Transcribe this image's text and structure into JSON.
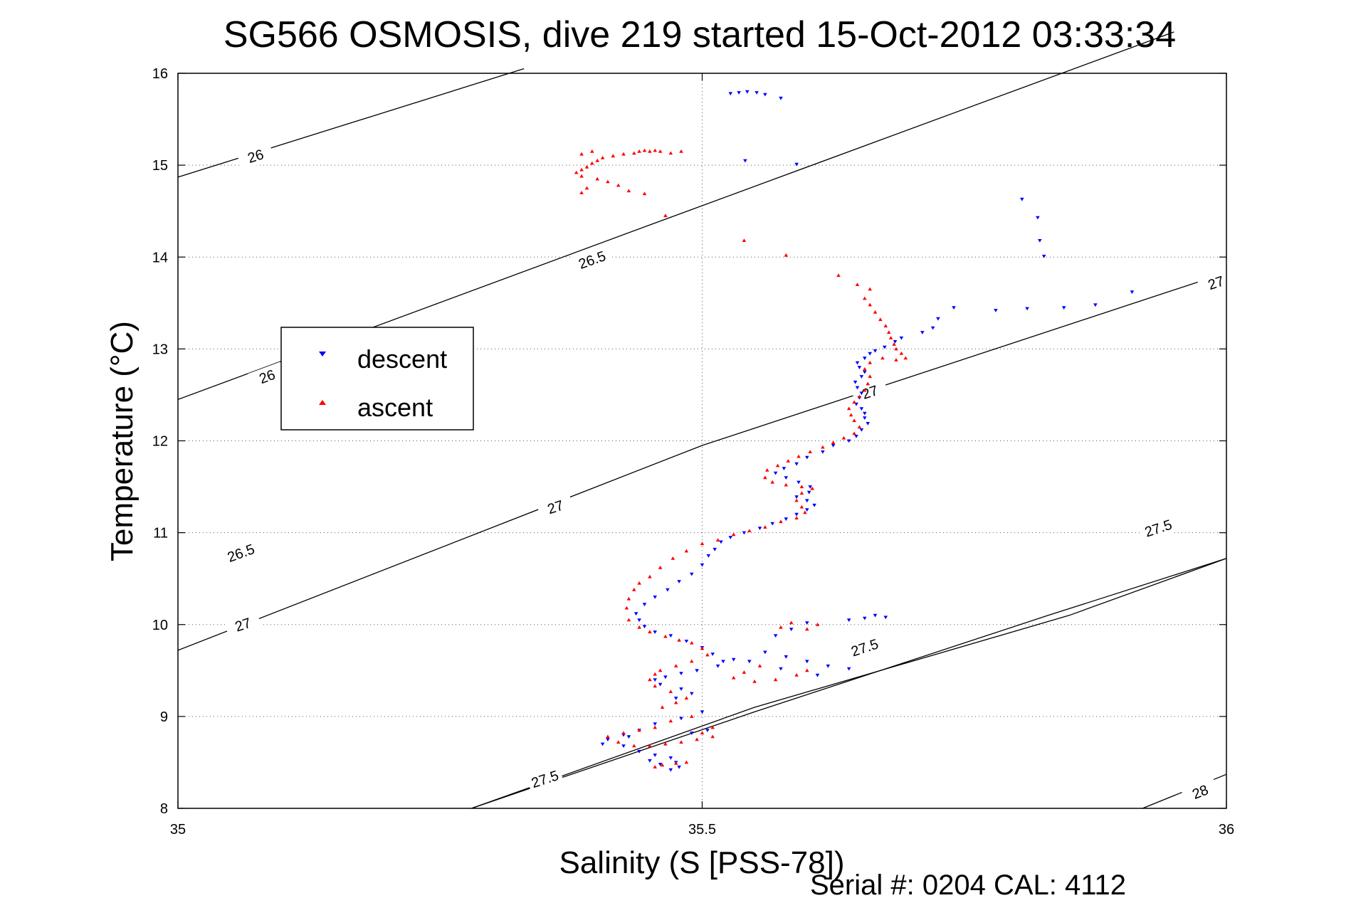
{
  "chart_data": {
    "type": "scatter",
    "title": "SG566 OSMOSIS, dive 219 started 15-Oct-2012 03:33:34",
    "xlabel": "Salinity (S [PSS-78])",
    "ylabel": "Temperature (°C)",
    "footer": "Serial #: 0204  CAL: 4112",
    "xlim": [
      35,
      36
    ],
    "ylim": [
      8,
      16
    ],
    "xticks": [
      "35",
      "35.5",
      "36"
    ],
    "yticks": [
      "8",
      "9",
      "10",
      "11",
      "12",
      "13",
      "14",
      "15",
      "16"
    ],
    "grid": "dotted",
    "legend": {
      "placement": "left",
      "entries": [
        {
          "label": "descent",
          "color": "#0000ff",
          "marker": "triangle-down"
        },
        {
          "label": "ascent",
          "color": "#ff0000",
          "marker": "triangle-up"
        }
      ]
    },
    "density_contours": [
      {
        "sigma": "26",
        "points": [
          [
            35.0,
            12.45
          ],
          [
            35.45,
            14.35
          ],
          [
            35.95,
            16.45
          ]
        ],
        "labels": [
          [
            35.085,
            12.7
          ]
        ]
      },
      {
        "sigma": "26",
        "points": [
          [
            35.0,
            14.87
          ],
          [
            35.33,
            16.05
          ]
        ],
        "labels": [
          [
            35.074,
            15.1
          ]
        ]
      },
      {
        "sigma": "26.5",
        "points": [
          [
            35.0,
            9.72
          ],
          [
            35.5,
            11.95
          ],
          [
            36.0,
            13.83
          ]
        ],
        "labels": [
          [
            35.395,
            13.97
          ],
          [
            35.06,
            10.78
          ]
        ]
      },
      {
        "sigma": "27",
        "points": [
          [
            35.28,
            8.0
          ],
          [
            35.55,
            9.05
          ],
          [
            35.83,
            10.1
          ],
          [
            36.0,
            10.72
          ]
        ],
        "labels": [
          [
            35.062,
            10.0
          ],
          [
            35.36,
            11.28
          ],
          [
            35.66,
            12.53
          ],
          [
            35.99,
            13.72
          ]
        ]
      },
      {
        "sigma": "27.5",
        "points": [
          [
            35.28,
            8.0
          ],
          [
            35.55,
            9.1
          ],
          [
            35.85,
            10.1
          ],
          [
            36.0,
            10.72
          ]
        ],
        "labels": [
          [
            35.35,
            8.32
          ],
          [
            35.655,
            9.75
          ],
          [
            35.935,
            11.05
          ]
        ]
      },
      {
        "sigma": "28",
        "points": [
          [
            35.92,
            8.0
          ],
          [
            36.0,
            8.37
          ]
        ],
        "labels": [
          [
            35.975,
            8.18
          ]
        ]
      }
    ],
    "series": [
      {
        "name": "descent",
        "color": "#0000ff",
        "points": [
          [
            35.527,
            15.78
          ],
          [
            35.535,
            15.79
          ],
          [
            35.543,
            15.8
          ],
          [
            35.552,
            15.79
          ],
          [
            35.56,
            15.77
          ],
          [
            35.575,
            15.73
          ],
          [
            35.541,
            15.05
          ],
          [
            35.59,
            15.01
          ],
          [
            35.805,
            14.63
          ],
          [
            35.82,
            14.43
          ],
          [
            35.822,
            14.18
          ],
          [
            35.826,
            14.01
          ],
          [
            35.91,
            13.62
          ],
          [
            35.875,
            13.48
          ],
          [
            35.845,
            13.45
          ],
          [
            35.81,
            13.44
          ],
          [
            35.78,
            13.42
          ],
          [
            35.74,
            13.45
          ],
          [
            35.725,
            13.33
          ],
          [
            35.72,
            13.23
          ],
          [
            35.71,
            13.18
          ],
          [
            35.69,
            13.12
          ],
          [
            35.684,
            13.08
          ],
          [
            35.674,
            13.02
          ],
          [
            35.665,
            12.98
          ],
          [
            35.66,
            12.95
          ],
          [
            35.655,
            12.9
          ],
          [
            35.648,
            12.85
          ],
          [
            35.65,
            12.8
          ],
          [
            35.655,
            12.75
          ],
          [
            35.652,
            12.7
          ],
          [
            35.646,
            12.64
          ],
          [
            35.648,
            12.58
          ],
          [
            35.652,
            12.52
          ],
          [
            35.65,
            12.47
          ],
          [
            35.647,
            12.4
          ],
          [
            35.652,
            12.35
          ],
          [
            35.655,
            12.3
          ],
          [
            35.655,
            12.25
          ],
          [
            35.658,
            12.19
          ],
          [
            35.652,
            12.12
          ],
          [
            35.647,
            12.05
          ],
          [
            35.64,
            12.0
          ],
          [
            35.625,
            11.95
          ],
          [
            35.615,
            11.88
          ],
          [
            35.6,
            11.82
          ],
          [
            35.59,
            11.75
          ],
          [
            35.578,
            11.7
          ],
          [
            35.57,
            11.65
          ],
          [
            35.58,
            11.6
          ],
          [
            35.592,
            11.55
          ],
          [
            35.603,
            11.5
          ],
          [
            35.602,
            11.44
          ],
          [
            35.59,
            11.39
          ],
          [
            35.6,
            11.35
          ],
          [
            35.607,
            11.3
          ],
          [
            35.6,
            11.25
          ],
          [
            35.59,
            11.2
          ],
          [
            35.58,
            11.15
          ],
          [
            35.567,
            11.1
          ],
          [
            35.555,
            11.05
          ],
          [
            35.54,
            11.0
          ],
          [
            35.527,
            10.95
          ],
          [
            35.518,
            10.9
          ],
          [
            35.512,
            10.82
          ],
          [
            35.506,
            10.75
          ],
          [
            35.5,
            10.65
          ],
          [
            35.49,
            10.55
          ],
          [
            35.478,
            10.47
          ],
          [
            35.467,
            10.38
          ],
          [
            35.455,
            10.3
          ],
          [
            35.445,
            10.22
          ],
          [
            35.437,
            10.12
          ],
          [
            35.44,
            10.05
          ],
          [
            35.445,
            9.98
          ],
          [
            35.455,
            9.92
          ],
          [
            35.47,
            9.88
          ],
          [
            35.485,
            9.82
          ],
          [
            35.5,
            9.75
          ],
          [
            35.51,
            9.68
          ],
          [
            35.52,
            9.6
          ],
          [
            35.515,
            9.55
          ],
          [
            35.495,
            9.5
          ],
          [
            35.48,
            9.47
          ],
          [
            35.465,
            9.43
          ],
          [
            35.455,
            9.4
          ],
          [
            35.46,
            9.35
          ],
          [
            35.48,
            9.3
          ],
          [
            35.49,
            9.25
          ],
          [
            35.475,
            9.2
          ],
          [
            35.56,
            9.7
          ],
          [
            35.58,
            9.65
          ],
          [
            35.6,
            9.6
          ],
          [
            35.62,
            9.55
          ],
          [
            35.64,
            9.52
          ],
          [
            35.61,
            9.45
          ],
          [
            35.575,
            9.52
          ],
          [
            35.545,
            9.6
          ],
          [
            35.53,
            9.62
          ],
          [
            35.675,
            10.08
          ],
          [
            35.665,
            10.1
          ],
          [
            35.655,
            10.07
          ],
          [
            35.64,
            10.05
          ],
          [
            35.6,
            10.02
          ],
          [
            35.585,
            9.95
          ],
          [
            35.57,
            9.88
          ],
          [
            35.5,
            9.05
          ],
          [
            35.48,
            8.98
          ],
          [
            35.455,
            8.92
          ],
          [
            35.44,
            8.85
          ],
          [
            35.425,
            8.8
          ],
          [
            35.41,
            8.75
          ],
          [
            35.405,
            8.7
          ],
          [
            35.425,
            8.68
          ],
          [
            35.44,
            8.62
          ],
          [
            35.455,
            8.58
          ],
          [
            35.47,
            8.55
          ],
          [
            35.475,
            8.5
          ],
          [
            35.478,
            8.45
          ],
          [
            35.47,
            8.42
          ],
          [
            35.46,
            8.48
          ],
          [
            35.45,
            8.52
          ],
          [
            35.43,
            8.78
          ],
          [
            35.49,
            8.82
          ],
          [
            35.505,
            8.85
          ]
        ]
      },
      {
        "name": "ascent",
        "color": "#ff0000",
        "points": [
          [
            35.46,
            15.15
          ],
          [
            35.455,
            15.16
          ],
          [
            35.45,
            15.15
          ],
          [
            35.445,
            15.16
          ],
          [
            35.44,
            15.15
          ],
          [
            35.435,
            15.13
          ],
          [
            35.425,
            15.12
          ],
          [
            35.415,
            15.1
          ],
          [
            35.405,
            15.08
          ],
          [
            35.4,
            15.05
          ],
          [
            35.395,
            15.02
          ],
          [
            35.39,
            14.98
          ],
          [
            35.385,
            14.95
          ],
          [
            35.38,
            14.92
          ],
          [
            35.385,
            14.88
          ],
          [
            35.4,
            14.85
          ],
          [
            35.41,
            14.82
          ],
          [
            35.42,
            14.78
          ],
          [
            35.43,
            14.72
          ],
          [
            35.445,
            14.69
          ],
          [
            35.385,
            14.7
          ],
          [
            35.39,
            14.75
          ],
          [
            35.47,
            15.13
          ],
          [
            35.48,
            15.15
          ],
          [
            35.385,
            15.12
          ],
          [
            35.395,
            15.15
          ],
          [
            35.465,
            14.45
          ],
          [
            35.54,
            14.18
          ],
          [
            35.58,
            14.02
          ],
          [
            35.63,
            13.8
          ],
          [
            35.648,
            13.7
          ],
          [
            35.66,
            13.65
          ],
          [
            35.655,
            13.55
          ],
          [
            35.66,
            13.48
          ],
          [
            35.665,
            13.4
          ],
          [
            35.67,
            13.32
          ],
          [
            35.675,
            13.25
          ],
          [
            35.678,
            13.18
          ],
          [
            35.68,
            13.12
          ],
          [
            35.683,
            13.05
          ],
          [
            35.685,
            13.0
          ],
          [
            35.69,
            12.95
          ],
          [
            35.694,
            12.9
          ],
          [
            35.685,
            12.88
          ],
          [
            35.672,
            12.9
          ],
          [
            35.66,
            12.85
          ],
          [
            35.655,
            12.78
          ],
          [
            35.66,
            12.7
          ],
          [
            35.658,
            12.62
          ],
          [
            35.655,
            12.55
          ],
          [
            35.65,
            12.48
          ],
          [
            35.645,
            12.42
          ],
          [
            35.64,
            12.35
          ],
          [
            35.642,
            12.28
          ],
          [
            35.645,
            12.22
          ],
          [
            35.65,
            12.15
          ],
          [
            35.645,
            12.08
          ],
          [
            35.635,
            12.03
          ],
          [
            35.625,
            11.98
          ],
          [
            35.615,
            11.93
          ],
          [
            35.603,
            11.88
          ],
          [
            35.592,
            11.83
          ],
          [
            35.582,
            11.78
          ],
          [
            35.572,
            11.73
          ],
          [
            35.562,
            11.68
          ],
          [
            35.56,
            11.6
          ],
          [
            35.567,
            11.55
          ],
          [
            35.58,
            11.52
          ],
          [
            35.595,
            11.5
          ],
          [
            35.605,
            11.48
          ],
          [
            35.595,
            11.43
          ],
          [
            35.59,
            11.35
          ],
          [
            35.595,
            11.28
          ],
          [
            35.598,
            11.22
          ],
          [
            35.59,
            11.16
          ],
          [
            35.575,
            11.12
          ],
          [
            35.56,
            11.06
          ],
          [
            35.545,
            11.02
          ],
          [
            35.53,
            10.98
          ],
          [
            35.515,
            10.92
          ],
          [
            35.5,
            10.88
          ],
          [
            35.485,
            10.8
          ],
          [
            35.472,
            10.72
          ],
          [
            35.46,
            10.62
          ],
          [
            35.45,
            10.52
          ],
          [
            35.44,
            10.45
          ],
          [
            35.435,
            10.38
          ],
          [
            35.43,
            10.28
          ],
          [
            35.428,
            10.18
          ],
          [
            35.43,
            10.05
          ],
          [
            35.44,
            9.97
          ],
          [
            35.45,
            9.92
          ],
          [
            35.465,
            9.87
          ],
          [
            35.478,
            9.83
          ],
          [
            35.49,
            9.8
          ],
          [
            35.5,
            9.74
          ],
          [
            35.505,
            9.67
          ],
          [
            35.49,
            9.6
          ],
          [
            35.475,
            9.55
          ],
          [
            35.46,
            9.5
          ],
          [
            35.455,
            9.46
          ],
          [
            35.45,
            9.4
          ],
          [
            35.455,
            9.33
          ],
          [
            35.47,
            9.27
          ],
          [
            35.485,
            9.2
          ],
          [
            35.475,
            9.15
          ],
          [
            35.462,
            9.1
          ],
          [
            35.53,
            9.42
          ],
          [
            35.55,
            9.38
          ],
          [
            35.57,
            9.4
          ],
          [
            35.59,
            9.45
          ],
          [
            35.6,
            9.5
          ],
          [
            35.555,
            9.55
          ],
          [
            35.54,
            9.48
          ],
          [
            35.6,
            9.95
          ],
          [
            35.61,
            10.0
          ],
          [
            35.585,
            10.02
          ],
          [
            35.575,
            9.97
          ],
          [
            35.49,
            9.0
          ],
          [
            35.47,
            8.95
          ],
          [
            35.455,
            8.88
          ],
          [
            35.44,
            8.85
          ],
          [
            35.425,
            8.82
          ],
          [
            35.41,
            8.78
          ],
          [
            35.42,
            8.72
          ],
          [
            35.435,
            8.68
          ],
          [
            35.45,
            8.68
          ],
          [
            35.465,
            8.7
          ],
          [
            35.48,
            8.72
          ],
          [
            35.495,
            8.75
          ],
          [
            35.51,
            8.78
          ],
          [
            35.5,
            8.82
          ],
          [
            35.51,
            8.88
          ],
          [
            35.455,
            8.45
          ],
          [
            35.462,
            8.47
          ],
          [
            35.475,
            8.49
          ],
          [
            35.485,
            8.5
          ]
        ]
      }
    ]
  }
}
